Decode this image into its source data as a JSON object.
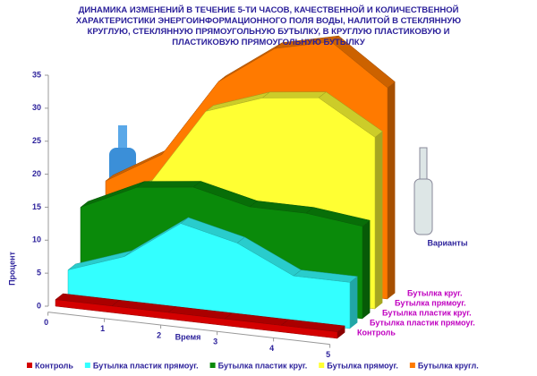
{
  "chart_data": {
    "type": "area3d",
    "title": "ДИНАМИКА ИЗМЕНЕНИЙ В ТЕЧЕНИЕ 5-ТИ ЧАСОВ, КАЧЕСТВЕННОЙ И КОЛИЧЕСТВЕННОЙ ХАРАКТЕРИСТИКИ ЭНЕРГОИНФОРМАЦИОННОГО ПОЛЯ ВОДЫ, НАЛИТОЙ В СТЕКЛЯННУЮ КРУГЛУЮ, СТЕКЛЯННУЮ ПРЯМОУГОЛЬНУЮ БУТЫЛКУ, В КРУГЛУЮ ПЛАСТИКОВУЮ И ПЛАСТИКОВУЮ ПРЯМОУГОЛЬНУЮ БУТЫЛКУ",
    "x_label": "Время",
    "y_label": "Процент",
    "depth_label": "Варианты",
    "x": [
      0,
      1,
      2,
      3,
      4,
      5
    ],
    "xlim": [
      0,
      5
    ],
    "xticks": [
      0,
      1,
      2,
      3,
      4,
      5
    ],
    "ylim": [
      0,
      35
    ],
    "yticks": [
      0,
      5,
      10,
      15,
      20,
      25,
      30,
      35
    ],
    "depth_categories": [
      "Контроль",
      "Бутылка пластик прямоуг.",
      "Бутылка пластик круг.",
      "Бутылка прямоуг.",
      "Бутылка круг."
    ],
    "legend": "bottom",
    "series": [
      {
        "name": "Контроль",
        "color": "#d40000",
        "values": [
          1,
          1,
          1,
          1,
          1,
          1
        ]
      },
      {
        "name": "Бутылка пластик прямоуг.",
        "color": "#33ffff",
        "values": [
          4,
          7,
          13,
          11,
          7,
          7
        ]
      },
      {
        "name": "Бутылка пластик круг.",
        "color": "#0a8a0a",
        "values": [
          12,
          16,
          17,
          15,
          15,
          14
        ]
      },
      {
        "name": "Бутылка прямоуг.",
        "color": "#ffff33",
        "values": [
          11,
          15,
          27,
          30,
          31,
          26
        ]
      },
      {
        "name": "Бутылка кругл.",
        "color": "#ff7a00",
        "values": [
          13,
          18,
          30,
          36,
          38,
          32
        ]
      }
    ]
  }
}
